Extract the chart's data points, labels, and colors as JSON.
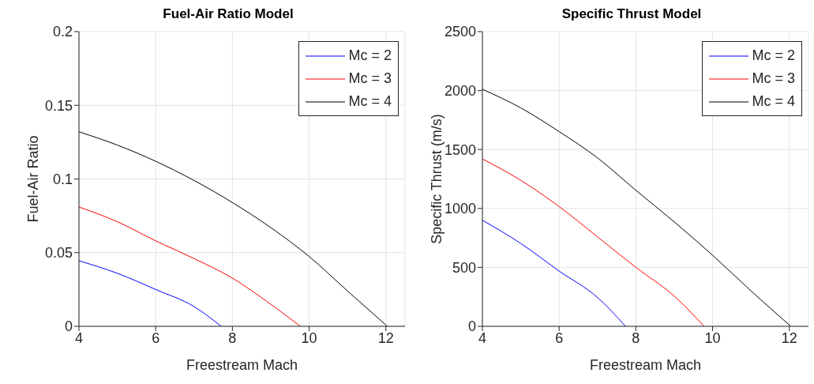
{
  "chart_data": [
    {
      "type": "line",
      "title": "Fuel-Air Ratio Model",
      "xlabel": "Freestream Mach",
      "ylabel": "Fuel-Air Ratio",
      "xlim": [
        4,
        12.5
      ],
      "xticks": [
        4,
        6,
        8,
        10,
        12
      ],
      "ylim": [
        0,
        0.2
      ],
      "yticks": [
        0,
        0.05,
        0.1,
        0.15,
        0.2
      ],
      "grid": true,
      "legend": "top right",
      "series": [
        {
          "name": "Mc = 2",
          "color": "#0000ff",
          "x": [
            4,
            5,
            6,
            7,
            7.71
          ],
          "values": [
            0.0445,
            0.036,
            0.025,
            0.0134,
            0
          ]
        },
        {
          "name": "Mc = 3",
          "color": "#ff0000",
          "x": [
            4,
            5,
            6,
            7,
            8,
            9,
            9.77
          ],
          "values": [
            0.081,
            0.071,
            0.058,
            0.046,
            0.0327,
            0.015,
            0
          ]
        },
        {
          "name": "Mc = 4",
          "color": "#000000",
          "x": [
            4,
            5,
            6,
            7,
            8,
            9,
            10,
            11,
            12.04
          ],
          "values": [
            0.132,
            0.123,
            0.112,
            0.099,
            0.084,
            0.067,
            0.0474,
            0.024,
            0
          ]
        }
      ]
    },
    {
      "type": "line",
      "title": "Specific Thrust Model",
      "xlabel": "Freestream Mach",
      "ylabel": "Specific Thrust (m/s)",
      "xlim": [
        4,
        12.5
      ],
      "xticks": [
        4,
        6,
        8,
        10,
        12
      ],
      "ylim": [
        0,
        2500
      ],
      "yticks": [
        0,
        500,
        1000,
        1500,
        2000,
        2500
      ],
      "grid": true,
      "legend": "top right",
      "series": [
        {
          "name": "Mc = 2",
          "color": "#0000ff",
          "x": [
            4,
            5,
            6,
            7,
            7.73
          ],
          "values": [
            900,
            703,
            469,
            245,
            0
          ]
        },
        {
          "name": "Mc = 3",
          "color": "#ff0000",
          "x": [
            4,
            5,
            6,
            7,
            8,
            9,
            9.78
          ],
          "values": [
            1420,
            1239,
            1016,
            759,
            500,
            257,
            0
          ]
        },
        {
          "name": "Mc = 4",
          "color": "#000000",
          "x": [
            4,
            5,
            6,
            7,
            8,
            9,
            10,
            11,
            12.04
          ],
          "values": [
            2011,
            1853,
            1652,
            1429,
            1154,
            886,
            603,
            301,
            0
          ]
        }
      ]
    }
  ]
}
